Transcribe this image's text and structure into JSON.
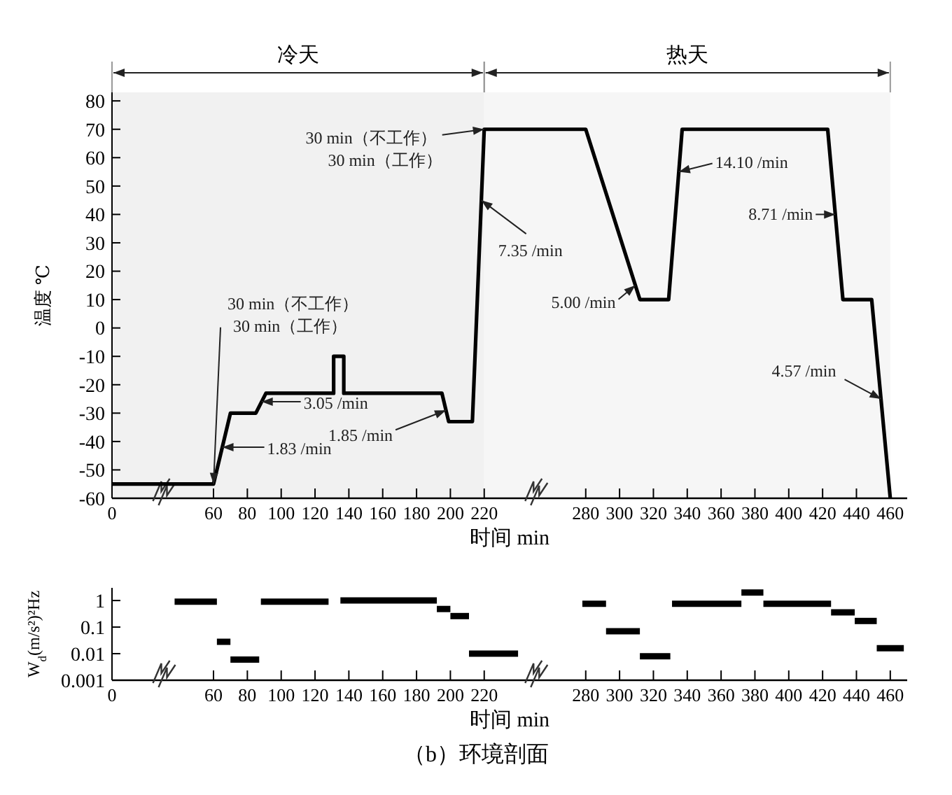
{
  "chart_data": [
    {
      "type": "line",
      "xlabel": "时间 min",
      "ylabel": "温度 ℃",
      "color": "#000000",
      "x": [
        0,
        60,
        70,
        85,
        91,
        131,
        131,
        137,
        137,
        195,
        199,
        213,
        220,
        280,
        312,
        329,
        337,
        423,
        432,
        449,
        460
      ],
      "values": [
        -55,
        -55,
        -30,
        -30,
        -23,
        -23,
        -10,
        -10,
        -23,
        -23,
        -33,
        -33,
        70,
        70,
        10,
        10,
        70,
        70,
        10,
        10,
        -60
      ],
      "xlim": [
        0,
        470
      ],
      "xticks": [
        0,
        60,
        80,
        100,
        120,
        140,
        160,
        180,
        200,
        220,
        280,
        300,
        320,
        340,
        360,
        380,
        400,
        420,
        440,
        460
      ],
      "ylim": [
        -60,
        83
      ],
      "yticks": [
        -60,
        -50,
        -40,
        -30,
        -20,
        -10,
        0,
        10,
        20,
        30,
        40,
        50,
        60,
        70,
        80
      ],
      "bands": [
        {
          "axis": "x",
          "from": 0,
          "to": 220,
          "label": "冷天"
        },
        {
          "axis": "x",
          "from": 220,
          "to": 460,
          "label": "热天"
        }
      ],
      "annotations": [
        {
          "text": "30 min（不工作）\n30 min（工作）",
          "x": 60,
          "y": -55
        },
        {
          "text": "30 min（不工作）\n30 min（工作）",
          "x": 220,
          "y": 70
        },
        {
          "text": "1.83 /min",
          "x": 65.2,
          "y": -42
        },
        {
          "text": "3.05 /min",
          "x": 88.4,
          "y": -26
        },
        {
          "text": "1.85 /min",
          "x": 197.4,
          "y": -29
        },
        {
          "text": "7.35 /min",
          "x": 218.3,
          "y": 45
        },
        {
          "text": "5.00 /min",
          "x": 309.3,
          "y": 15
        },
        {
          "text": "14.10 /min",
          "x": 335,
          "y": 55
        },
        {
          "text": "8.71 /min",
          "x": 427.5,
          "y": 40
        },
        {
          "text": "4.57 /min",
          "x": 454.5,
          "y": -25
        }
      ]
    },
    {
      "type": "line",
      "xlabel": "时间 min",
      "ylabel": "W$_{d}$(m/s²)²Hz",
      "log": "y",
      "series": [
        {
          "color": "#000000",
          "x": [
            37,
            62
          ],
          "values": [
            0.9,
            0.9
          ]
        },
        {
          "color": "#000000",
          "x": [
            62,
            70
          ],
          "values": [
            0.028,
            0.028
          ]
        },
        {
          "color": "#000000",
          "x": [
            70,
            87
          ],
          "values": [
            0.006,
            0.006
          ]
        },
        {
          "color": "#000000",
          "x": [
            88,
            128
          ],
          "values": [
            0.9,
            0.9
          ]
        },
        {
          "color": "#000000",
          "x": [
            135,
            192
          ],
          "values": [
            1,
            1
          ]
        },
        {
          "color": "#000000",
          "x": [
            192,
            200
          ],
          "values": [
            0.48,
            0.48
          ]
        },
        {
          "color": "#000000",
          "x": [
            200,
            211
          ],
          "values": [
            0.26,
            0.26
          ]
        },
        {
          "color": "#000000",
          "x": [
            211,
            240
          ],
          "values": [
            0.01,
            0.01
          ]
        },
        {
          "color": "#000000",
          "x": [
            278,
            292
          ],
          "values": [
            0.76,
            0.76
          ]
        },
        {
          "color": "#000000",
          "x": [
            292,
            312
          ],
          "values": [
            0.07,
            0.07
          ]
        },
        {
          "color": "#000000",
          "x": [
            312,
            330
          ],
          "values": [
            0.008,
            0.008
          ]
        },
        {
          "color": "#000000",
          "x": [
            331,
            372
          ],
          "values": [
            0.76,
            0.76
          ]
        },
        {
          "color": "#000000",
          "x": [
            372,
            385
          ],
          "values": [
            2,
            2
          ]
        },
        {
          "color": "#000000",
          "x": [
            385,
            425
          ],
          "values": [
            0.76,
            0.76
          ]
        },
        {
          "color": "#000000",
          "x": [
            425,
            439
          ],
          "values": [
            0.36,
            0.36
          ]
        },
        {
          "color": "#000000",
          "x": [
            439,
            452
          ],
          "values": [
            0.17,
            0.17
          ]
        },
        {
          "color": "#000000",
          "x": [
            452,
            468
          ],
          "values": [
            0.016,
            0.016
          ]
        }
      ],
      "xlim": [
        0,
        470
      ],
      "xticks": [
        0,
        60,
        80,
        100,
        120,
        140,
        160,
        180,
        200,
        220,
        280,
        300,
        320,
        340,
        360,
        380,
        400,
        420,
        440,
        460
      ],
      "ylim": [
        0.001,
        3
      ],
      "yticks": [
        {
          "value": 1,
          "label": "1"
        },
        {
          "value": 0.1,
          "label": "0.1"
        },
        {
          "value": 0.01,
          "label": "0.01"
        },
        {
          "value": 0.001,
          "label": "0.001"
        }
      ],
      "annotations": [
        "（b）环境剖面"
      ]
    }
  ]
}
